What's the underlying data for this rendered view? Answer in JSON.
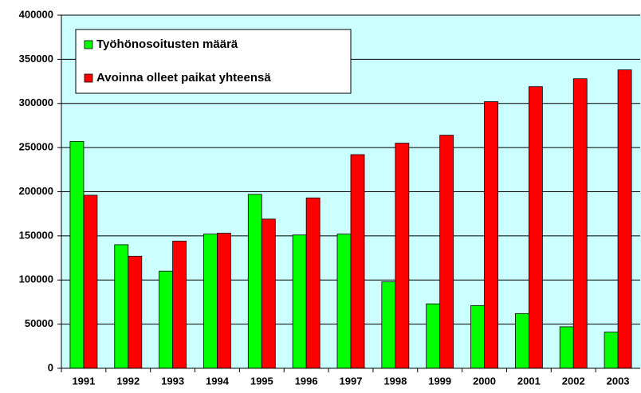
{
  "chart_data": {
    "type": "bar",
    "categories": [
      "1991",
      "1992",
      "1993",
      "1994",
      "1995",
      "1996",
      "1997",
      "1998",
      "1999",
      "2000",
      "2001",
      "2002",
      "2003"
    ],
    "series": [
      {
        "name": "Työhönosoitusten määrä",
        "color": "#00ff00",
        "values": [
          257000,
          140000,
          110000,
          152000,
          197000,
          151000,
          152000,
          98000,
          73000,
          71000,
          62000,
          47000,
          41000
        ]
      },
      {
        "name": "Avoinna olleet paikat yhteensä",
        "color": "#ff0000",
        "values": [
          196000,
          127000,
          144000,
          153000,
          169000,
          193000,
          242000,
          255000,
          264000,
          302000,
          319000,
          328000,
          338000
        ]
      }
    ],
    "ylim": [
      0,
      400000
    ],
    "yticks": [
      0,
      50000,
      100000,
      150000,
      200000,
      250000,
      300000,
      350000,
      400000
    ],
    "grid": true,
    "legend": "top-left"
  }
}
